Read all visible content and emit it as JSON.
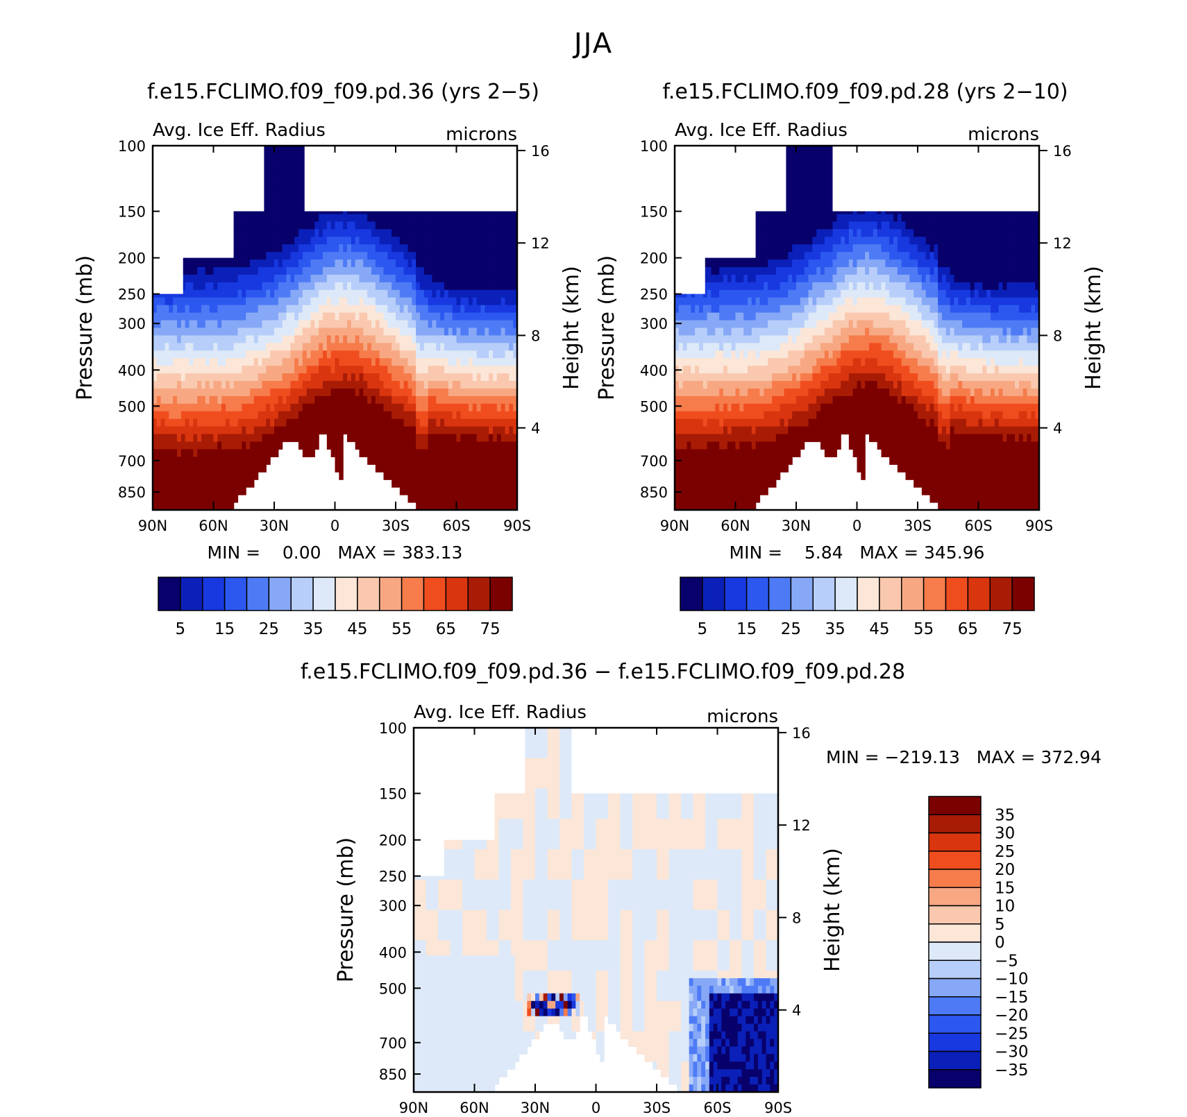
{
  "figure": {
    "title": "JJA"
  },
  "colors": {
    "scale": [
      "#08006b",
      "#0a20b8",
      "#1838e0",
      "#2c58f0",
      "#4e7bf5",
      "#86a8f6",
      "#b8cefa",
      "#dde9f8",
      "#fbe6d8",
      "#f9c8ae",
      "#f7a883",
      "#f67c4c",
      "#f04d1f",
      "#d9350f",
      "#a81c06",
      "#7b0000"
    ]
  },
  "chart_data": [
    {
      "type": "heatmap",
      "title": "f.e15.FCLIMO.f09_f09.pd.36 (yrs 2−5)",
      "variable_label": "Avg. Ice Eff. Radius",
      "units_label": "microns",
      "ylabel": "Pressure (mb)",
      "ylabel_right": "Height (km)",
      "x_ticks": [
        "90N",
        "60N",
        "30N",
        "0",
        "30S",
        "60S",
        "90S"
      ],
      "x_values": [
        90,
        60,
        30,
        0,
        -30,
        -60,
        -90
      ],
      "y_ticks": [
        100,
        150,
        200,
        250,
        300,
        400,
        500,
        700,
        850
      ],
      "y_right_ticks": [
        16,
        12,
        8,
        4
      ],
      "ylim": [
        100,
        950
      ],
      "min_max_text": "MIN =    0.00   MAX = 383.13",
      "min": 0.0,
      "max": 383.13,
      "colorbar_labels": [
        "5",
        "15",
        "25",
        "35",
        "45",
        "55",
        "65",
        "75"
      ],
      "colorbar_levels": [
        5,
        10,
        15,
        20,
        25,
        30,
        35,
        40,
        45,
        50,
        55,
        60,
        65,
        70,
        75
      ],
      "field": "absolute",
      "coverage": [
        [
          90,
          250
        ],
        [
          75,
          200
        ],
        [
          50,
          150
        ],
        [
          35,
          100
        ],
        [
          15,
          100
        ],
        [
          15,
          150
        ],
        [
          -90,
          150
        ]
      ]
    },
    {
      "type": "heatmap",
      "title": "f.e15.FCLIMO.f09_f09.pd.28 (yrs 2−10)",
      "variable_label": "Avg. Ice Eff. Radius",
      "units_label": "microns",
      "ylabel": "Pressure (mb)",
      "ylabel_right": "Height (km)",
      "x_ticks": [
        "90N",
        "60N",
        "30N",
        "0",
        "30S",
        "60S",
        "90S"
      ],
      "x_values": [
        90,
        60,
        30,
        0,
        -30,
        -60,
        -90
      ],
      "y_ticks": [
        100,
        150,
        200,
        250,
        300,
        400,
        500,
        700,
        850
      ],
      "y_right_ticks": [
        16,
        12,
        8,
        4
      ],
      "ylim": [
        100,
        950
      ],
      "min_max_text": "MIN =    5.84   MAX = 345.96",
      "min": 5.84,
      "max": 345.96,
      "colorbar_labels": [
        "5",
        "15",
        "25",
        "35",
        "45",
        "55",
        "65",
        "75"
      ],
      "colorbar_levels": [
        5,
        10,
        15,
        20,
        25,
        30,
        35,
        40,
        45,
        50,
        55,
        60,
        65,
        70,
        75
      ],
      "field": "absolute",
      "coverage": [
        [
          90,
          250
        ],
        [
          75,
          200
        ],
        [
          50,
          150
        ],
        [
          35,
          100
        ],
        [
          12,
          100
        ],
        [
          12,
          150
        ],
        [
          -90,
          150
        ]
      ]
    },
    {
      "type": "heatmap",
      "title": "f.e15.FCLIMO.f09_f09.pd.36 − f.e15.FCLIMO.f09_f09.pd.28",
      "variable_label": "Avg. Ice Eff. Radius",
      "units_label": "microns",
      "ylabel": "Pressure (mb)",
      "ylabel_right": "Height (km)",
      "x_ticks": [
        "90N",
        "60N",
        "30N",
        "0",
        "30S",
        "60S",
        "90S"
      ],
      "x_values": [
        90,
        60,
        30,
        0,
        -30,
        -60,
        -90
      ],
      "y_ticks": [
        100,
        150,
        200,
        250,
        300,
        400,
        500,
        700,
        850
      ],
      "y_right_ticks": [
        16,
        12,
        8,
        4
      ],
      "ylim": [
        100,
        950
      ],
      "min_max_text": "MIN = −219.13   MAX = 372.94",
      "min": -219.13,
      "max": 372.94,
      "colorbar_labels": [
        "35",
        "30",
        "25",
        "20",
        "15",
        "10",
        "5",
        "0",
        "−5",
        "−10",
        "−15",
        "−20",
        "−25",
        "−30",
        "−35"
      ],
      "colorbar_levels": [
        -35,
        -30,
        -25,
        -20,
        -15,
        -10,
        -5,
        0,
        5,
        10,
        15,
        20,
        25,
        30,
        35
      ],
      "field": "difference",
      "coverage": [
        [
          90,
          250
        ],
        [
          75,
          200
        ],
        [
          50,
          150
        ],
        [
          35,
          100
        ],
        [
          12,
          100
        ],
        [
          12,
          150
        ],
        [
          -90,
          150
        ]
      ]
    }
  ]
}
